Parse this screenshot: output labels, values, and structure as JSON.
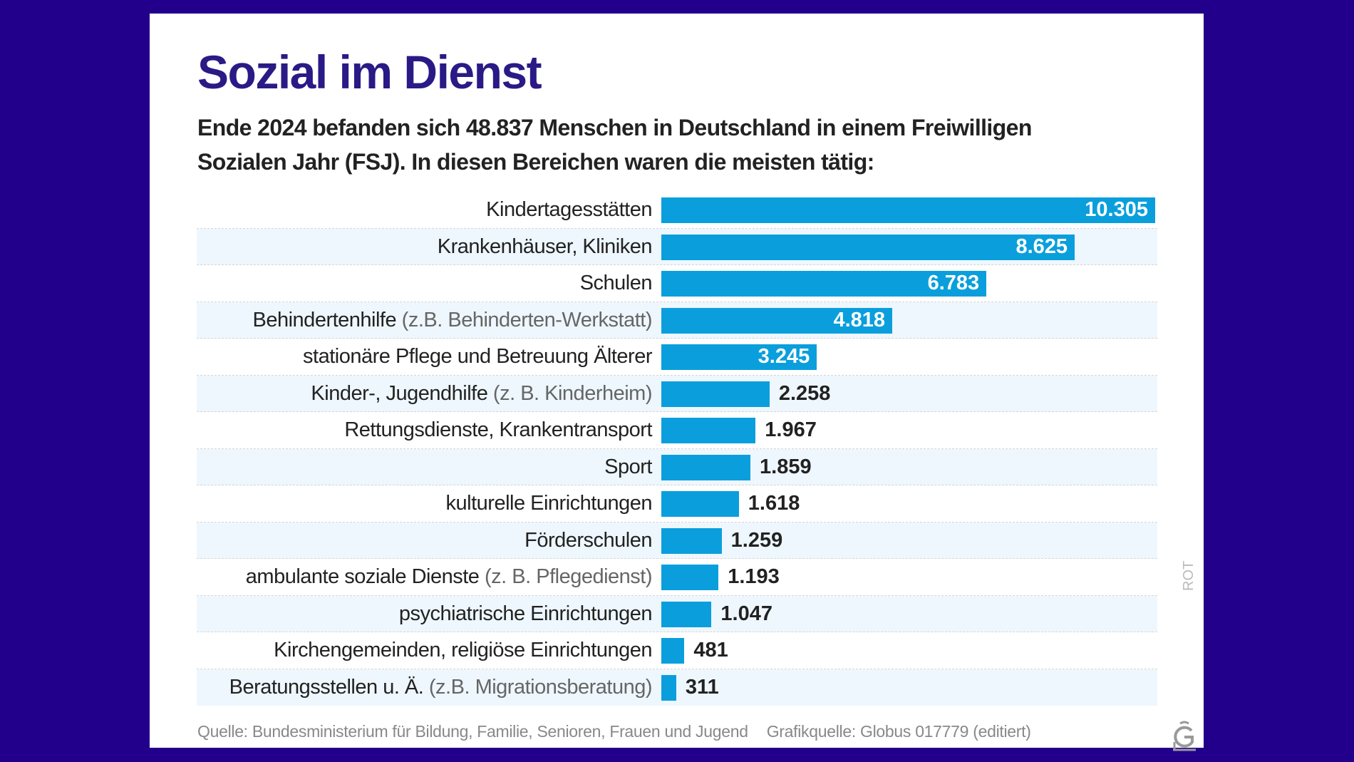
{
  "chart_data": {
    "type": "bar",
    "orientation": "horizontal",
    "title": "Sozial im Dienst",
    "subtitle": "Ende 2024 befanden sich 48.837 Menschen in Deutschland in einem Freiwilligen Sozialen Jahr (FSJ).  In diesen Bereichen waren die meisten tätig:",
    "categories": [
      {
        "label": "Kindertagesstätten",
        "note": ""
      },
      {
        "label": "Krankenhäuser, Kliniken",
        "note": ""
      },
      {
        "label": "Schulen",
        "note": ""
      },
      {
        "label": "Behindertenhilfe",
        "note": "(z.B. Behinderten-Werkstatt)"
      },
      {
        "label": "stationäre Pflege und Betreuung Älterer",
        "note": ""
      },
      {
        "label": "Kinder-, Jugendhilfe",
        "note": "(z. B. Kinderheim)"
      },
      {
        "label": "Rettungsdienste, Krankentransport",
        "note": ""
      },
      {
        "label": "Sport",
        "note": ""
      },
      {
        "label": "kulturelle Einrichtungen",
        "note": ""
      },
      {
        "label": "Förderschulen",
        "note": ""
      },
      {
        "label": "ambulante soziale Dienste",
        "note": "(z. B. Pflegedienst)"
      },
      {
        "label": "psychiatrische Einrichtungen",
        "note": ""
      },
      {
        "label": "Kirchengemeinden, religiöse Einrichtungen",
        "note": ""
      },
      {
        "label": "Beratungsstellen u. Ä.",
        "note": "(z.B. Migrationsberatung)"
      }
    ],
    "values": [
      10305,
      8625,
      6783,
      4818,
      3245,
      2258,
      1967,
      1859,
      1618,
      1259,
      1193,
      1047,
      481,
      311
    ],
    "value_labels": [
      "10.305",
      "8.625",
      "6.783",
      "4.818",
      "3.245",
      "2.258",
      "1.967",
      "1.859",
      "1.618",
      "1.259",
      "1.193",
      "1.047",
      "481",
      "311"
    ],
    "xlim": [
      0,
      10305
    ],
    "grid": false,
    "colors": {
      "bar": "#0a9fdc",
      "title": "#2a1a86",
      "background": "#22008c",
      "stripe": "#eef7fd"
    }
  },
  "footer": {
    "source": "Quelle: Bundesministerium für Bildung, Familie, Senioren, Frauen und Jugend",
    "graphic_source": "Grafikquelle: Globus 017779 (editiert)"
  },
  "side_text": "ROT",
  "logo": "Globus"
}
